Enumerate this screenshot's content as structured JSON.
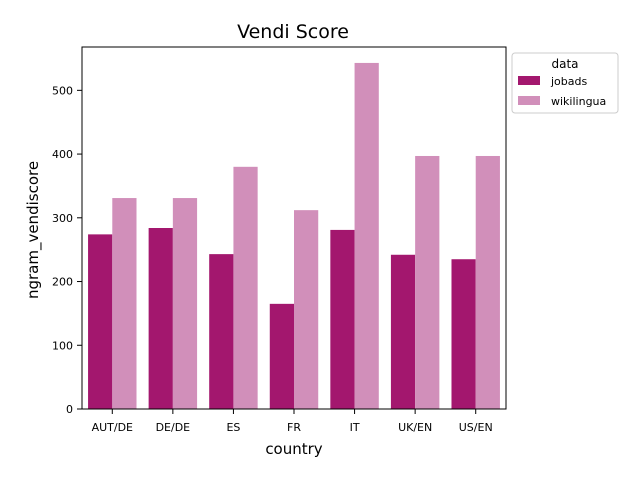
{
  "chart_data": {
    "type": "bar",
    "title": "Vendi Score",
    "xlabel": "country",
    "ylabel": "ngram_vendiscore",
    "categories": [
      "AUT/DE",
      "DE/DE",
      "ES",
      "FR",
      "IT",
      "UK/EN",
      "US/EN"
    ],
    "series": [
      {
        "name": "jobads",
        "color": "#a3176e",
        "values": [
          274,
          284,
          243,
          165,
          281,
          242,
          235
        ]
      },
      {
        "name": "wikilingua",
        "color": "#d18fba",
        "values": [
          331,
          331,
          380,
          312,
          543,
          397,
          397
        ]
      }
    ],
    "ylim": [
      0,
      568
    ],
    "yticks": [
      0,
      100,
      200,
      300,
      400,
      500
    ],
    "grid": false,
    "legend": {
      "title": "data",
      "position": "outside-top-right"
    }
  }
}
